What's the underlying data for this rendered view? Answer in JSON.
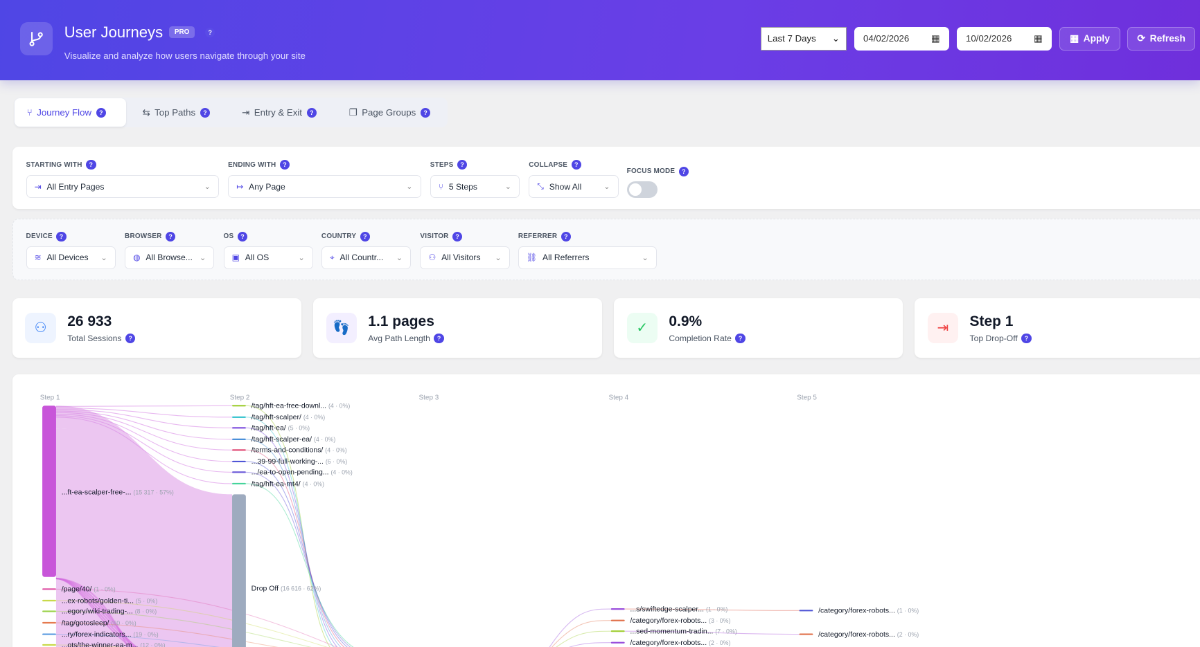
{
  "header": {
    "title": "User Journeys",
    "badge": "PRO",
    "help": "?",
    "subtitle": "Visualize and analyze how users navigate through your site",
    "range_select": "Last 7 Days",
    "date_from": "04/02/2026",
    "date_to": "10/02/2026",
    "apply_label": "Apply",
    "refresh_label": "Refresh"
  },
  "tabs": [
    {
      "label": "Journey Flow",
      "active": true
    },
    {
      "label": "Top Paths"
    },
    {
      "label": "Entry & Exit"
    },
    {
      "label": "Page Groups"
    }
  ],
  "filters": {
    "starting_with": {
      "label": "STARTING WITH",
      "value": "All Entry Pages"
    },
    "ending_with": {
      "label": "ENDING WITH",
      "value": "Any Page"
    },
    "steps": {
      "label": "STEPS",
      "value": "5 Steps"
    },
    "collapse": {
      "label": "COLLAPSE",
      "value": "Show All"
    },
    "focus_mode": {
      "label": "FOCUS MODE",
      "enabled": false
    },
    "device": {
      "label": "DEVICE",
      "value": "All Devices"
    },
    "browser": {
      "label": "BROWSER",
      "value": "All Browse..."
    },
    "os": {
      "label": "OS",
      "value": "All OS"
    },
    "country": {
      "label": "COUNTRY",
      "value": "All Countr..."
    },
    "visitor": {
      "label": "VISITOR",
      "value": "All Visitors"
    },
    "referrer": {
      "label": "REFERRER",
      "value": "All Referrers"
    }
  },
  "stats": [
    {
      "value": "26 933",
      "label": "Total Sessions",
      "icon": "users-icon",
      "color": "#3b82f6",
      "bg": "#eef4ff"
    },
    {
      "value": "1.1 pages",
      "label": "Avg Path Length",
      "icon": "footprints-icon",
      "color": "#8b5cf6",
      "bg": "#f3efff"
    },
    {
      "value": "0.9%",
      "label": "Completion Rate",
      "icon": "check-circle-icon",
      "color": "#22c55e",
      "bg": "#ecfdf3"
    },
    {
      "value": "Step 1",
      "label": "Top Drop-Off",
      "icon": "exit-icon",
      "color": "#ef4444",
      "bg": "#fff1f1"
    }
  ],
  "chart_data": {
    "type": "sankey",
    "steps": [
      "Step 1",
      "Step 2",
      "Step 3",
      "Step 4",
      "Step 5"
    ],
    "nodes": [
      {
        "step": 1,
        "label": "...ft-ea-scalper-free-...",
        "count": "15 317",
        "pct": "57%",
        "color": "#c855d9",
        "main": true
      },
      {
        "step": 1,
        "label": "/page/40/",
        "count": "1",
        "pct": "0%",
        "color": "#e05aa8"
      },
      {
        "step": 1,
        "label": "...ex-robots/golden-ti...",
        "count": "5",
        "pct": "0%",
        "color": "#c9d94a"
      },
      {
        "step": 1,
        "label": "...egory/wiki-trading-...",
        "count": "8",
        "pct": "0%",
        "color": "#9ad24a"
      },
      {
        "step": 1,
        "label": "/tag/gotosleep/",
        "count": "60",
        "pct": "0%",
        "color": "#e57a4f"
      },
      {
        "step": 1,
        "label": "...ry/forex-indicators...",
        "count": "19",
        "pct": "0%",
        "color": "#5a9be0"
      },
      {
        "step": 1,
        "label": "...ots/the-winner-ea-m...",
        "count": "12",
        "pct": "0%",
        "color": "#c9d94a"
      },
      {
        "step": 2,
        "label": "/tag/hft-ea-free-downl...",
        "count": "4",
        "pct": "0%",
        "color": "#a3cf3a"
      },
      {
        "step": 2,
        "label": "/tag/hft-scalper/",
        "count": "4",
        "pct": "0%",
        "color": "#3fc6d0"
      },
      {
        "step": 2,
        "label": "/tag/hft-ea/",
        "count": "5",
        "pct": "0%",
        "color": "#7c4ddd"
      },
      {
        "step": 2,
        "label": "/tag/hft-scalper-ea/",
        "count": "4",
        "pct": "0%",
        "color": "#4a90d9"
      },
      {
        "step": 2,
        "label": "/terms-and-conditions/",
        "count": "4",
        "pct": "0%",
        "color": "#e0507a"
      },
      {
        "step": 2,
        "label": "...39-99-full-working-...",
        "count": "6",
        "pct": "0%",
        "color": "#4f55d6"
      },
      {
        "step": 2,
        "label": ".../ea-to-open-pending...",
        "count": "4",
        "pct": "0%",
        "color": "#6c5ad9"
      },
      {
        "step": 2,
        "label": "/tag/hft-ea-mt4/",
        "count": "4",
        "pct": "0%",
        "color": "#46d49b"
      },
      {
        "step": 2,
        "label": "Drop Off",
        "count": "16 616",
        "pct": "62%",
        "color": "#9eabbf",
        "dropoff": true
      },
      {
        "step": 4,
        "label": "...s/swiftedge-scalper...",
        "count": "1",
        "pct": "0%",
        "color": "#9a4fdc"
      },
      {
        "step": 4,
        "label": "/category/forex-robots...",
        "count": "3",
        "pct": "0%",
        "color": "#e0704a"
      },
      {
        "step": 4,
        "label": "...sed-momentum-tradin...",
        "count": "7",
        "pct": "0%",
        "color": "#a3cf3a"
      },
      {
        "step": 4,
        "label": "/category/forex-robots...",
        "count": "2",
        "pct": "0%",
        "color": "#9a4fdc"
      },
      {
        "step": 5,
        "label": "/category/forex-robots...",
        "count": "1",
        "pct": "0%",
        "color": "#4f55d6"
      },
      {
        "step": 5,
        "label": "/category/forex-robots...",
        "count": "2",
        "pct": "0%",
        "color": "#e0704a"
      }
    ]
  }
}
